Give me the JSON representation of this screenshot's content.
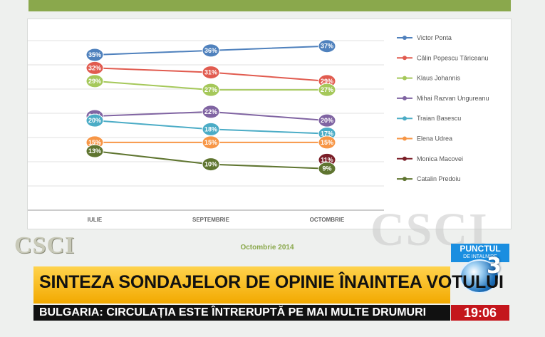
{
  "chart_data": {
    "type": "line",
    "categories": [
      "IULIE",
      "SEPTEMBRIE",
      "OCTOMBRIE"
    ],
    "ylim": [
      0,
      42
    ],
    "footer": "Octombrie 2014",
    "series": [
      {
        "name": "Victor Ponta",
        "color": "#4f81bd",
        "values": [
          35,
          36,
          37
        ]
      },
      {
        "name": "Călin Popescu Tăriceanu",
        "color": "#e15b4f",
        "values": [
          32,
          31,
          29
        ]
      },
      {
        "name": "Klaus Johannis",
        "color": "#a5c85a",
        "values": [
          29,
          27,
          27
        ]
      },
      {
        "name": "Mihai Razvan Ungureanu",
        "color": "#8064a2",
        "values": [
          21,
          22,
          20
        ]
      },
      {
        "name": "Traian Basescu",
        "color": "#4bacc6",
        "values": [
          20,
          18,
          17
        ]
      },
      {
        "name": "Elena Udrea",
        "color": "#f79646",
        "values": [
          15,
          15,
          15
        ]
      },
      {
        "name": "Monica Macovei",
        "color": "#7b1f28",
        "values": [
          null,
          null,
          11
        ]
      },
      {
        "name": "Catalin Predoiu",
        "color": "#5f7530",
        "values": [
          13,
          10,
          9
        ]
      }
    ]
  },
  "watermark": "CSCI",
  "logo": {
    "top": "PUNCTUL",
    "sub": "DE INTALNIRE",
    "num": "3"
  },
  "headline": "SINTEZA SONDAJELOR DE OPINIE ÎNAINTEA VOTULUI",
  "ticker": "BULGARIA: CIRCULAȚIA ESTE ÎNTRERUPTĂ PE MAI MULTE DRUMURI",
  "clock": "19:06"
}
